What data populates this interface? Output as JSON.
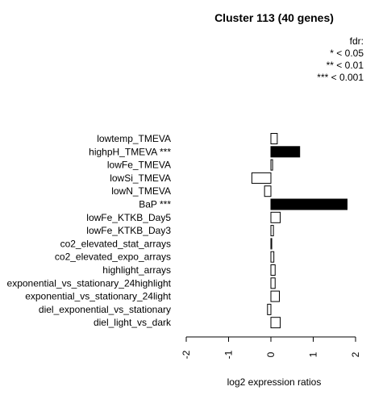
{
  "chart_data": {
    "type": "bar",
    "orientation": "horizontal",
    "title": "Cluster 113 (40 genes)",
    "xlabel": "log2 expression ratios",
    "ylabel": "",
    "xlim": [
      -2,
      2
    ],
    "xticks": [
      "-2",
      "-1",
      "0",
      "1",
      "2"
    ],
    "grid": false,
    "legend": {
      "placement": "top-right",
      "title": "fdr:",
      "entries": [
        "* < 0.05",
        "** < 0.01",
        "*** < 0.001"
      ]
    },
    "categories": [
      "lowtemp_TMEVA",
      "highpH_TMEVA ***",
      "lowFe_TMEVA",
      "lowSi_TMEVA",
      "lowN_TMEVA",
      "BaP ***",
      "lowFe_KTKB_Day5",
      "lowFe_KTKB_Day3",
      "co2_elevated_stat_arrays",
      "co2_elevated_expo_arrays",
      "highlight_arrays",
      "exponential_vs_stationary_24highlight",
      "exponential_vs_stationary_24light",
      "diel_exponential_vs_stationary",
      "diel_light_vs_dark"
    ],
    "values": [
      0.15,
      0.68,
      0.04,
      -0.45,
      -0.15,
      1.8,
      0.22,
      0.06,
      0.02,
      0.07,
      0.1,
      0.1,
      0.2,
      -0.08,
      0.22
    ],
    "significant": [
      false,
      true,
      false,
      false,
      false,
      true,
      false,
      false,
      false,
      false,
      false,
      false,
      false,
      false,
      false
    ],
    "colors": {
      "significant": "#000000",
      "normal": "#ffffff",
      "stroke": "#000000"
    }
  }
}
